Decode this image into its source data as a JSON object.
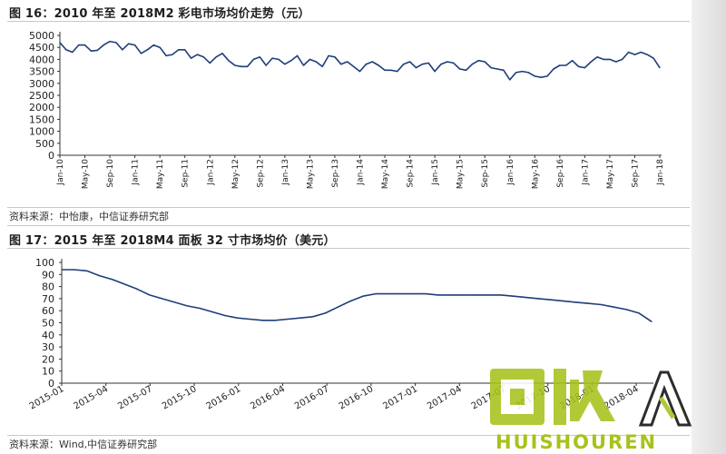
{
  "chart_data": [
    {
      "type": "line",
      "title": "图 16：2010 年至 2018M2 彩电市场均价走势（元）",
      "source": "资料来源：中怡康，中信证券研究部",
      "xlabel": "",
      "ylabel": "",
      "ylim": [
        0,
        5000
      ],
      "yticks": [
        0,
        500,
        1000,
        1500,
        2000,
        2500,
        3000,
        3500,
        4000,
        4500,
        5000
      ],
      "xtick_labels": [
        "Jan-10",
        "May-10",
        "Sep-10",
        "Jan-11",
        "May-11",
        "Sep-11",
        "Jan-12",
        "May-12",
        "Sep-12",
        "Jan-13",
        "May-13",
        "Sep-13",
        "Jan-14",
        "May-14",
        "Sep-14",
        "Jan-15",
        "May-15",
        "Sep-15",
        "Jan-16",
        "May-16",
        "Sep-16",
        "Jan-17",
        "May-17",
        "Sep-17",
        "Jan-18"
      ],
      "color": "#1f3d7a",
      "series": [
        {
          "values": [
            4700,
            4400,
            4300,
            4600,
            4600,
            4350,
            4380,
            4600,
            4750,
            4700,
            4400,
            4650,
            4600,
            4250,
            4400,
            4600,
            4500,
            4150,
            4200,
            4400,
            4400,
            4050,
            4200,
            4100,
            3850,
            4100,
            4250,
            3950,
            3750,
            3700,
            3700,
            4000,
            4100,
            3750,
            4050,
            4000,
            3800,
            3950,
            4150,
            3750,
            4000,
            3900,
            3700,
            4150,
            4100,
            3800,
            3900,
            3700,
            3500,
            3800,
            3900,
            3750,
            3550,
            3550,
            3500,
            3800,
            3900,
            3650,
            3800,
            3850,
            3500,
            3800,
            3900,
            3850,
            3600,
            3550,
            3800,
            3950,
            3900,
            3650,
            3600,
            3550,
            3150,
            3450,
            3500,
            3450,
            3300,
            3250,
            3300,
            3600,
            3750,
            3750,
            3950,
            3700,
            3650,
            3900,
            4100,
            4000,
            4000,
            3900,
            4000,
            4300,
            4200,
            4300,
            4200,
            4050,
            3650
          ]
        }
      ]
    },
    {
      "type": "line",
      "title": "图 17：2015 年至 2018M4 面板 32 寸市场均价（美元）",
      "source": "资料来源：Wind,中信证券研究部",
      "xlabel": "",
      "ylabel": "",
      "ylim": [
        0,
        100
      ],
      "yticks": [
        0,
        10,
        20,
        30,
        40,
        50,
        60,
        70,
        80,
        90,
        100
      ],
      "xtick_labels": [
        "2015-01",
        "2015-04",
        "2015-07",
        "2015-10",
        "2016-01",
        "2016-04",
        "2016-07",
        "2016-10",
        "2017-01",
        "2017-04",
        "2017-07",
        "2017-10",
        "2018-01",
        "2018-04"
      ],
      "color": "#1f3d7a",
      "series": [
        {
          "values": [
            94,
            94,
            93,
            89,
            86,
            82,
            78,
            73,
            70,
            67,
            64,
            62,
            59,
            56,
            54,
            53,
            52,
            52,
            53,
            54,
            55,
            58,
            63,
            68,
            72,
            74,
            74,
            74,
            74,
            74,
            73,
            73,
            73,
            73,
            73,
            73,
            72,
            71,
            70,
            69,
            68,
            67,
            66,
            65,
            63,
            61,
            58,
            51
          ]
        }
      ]
    }
  ],
  "watermark": {
    "glyphs": "回收",
    "text": "HUISHOUREN"
  }
}
